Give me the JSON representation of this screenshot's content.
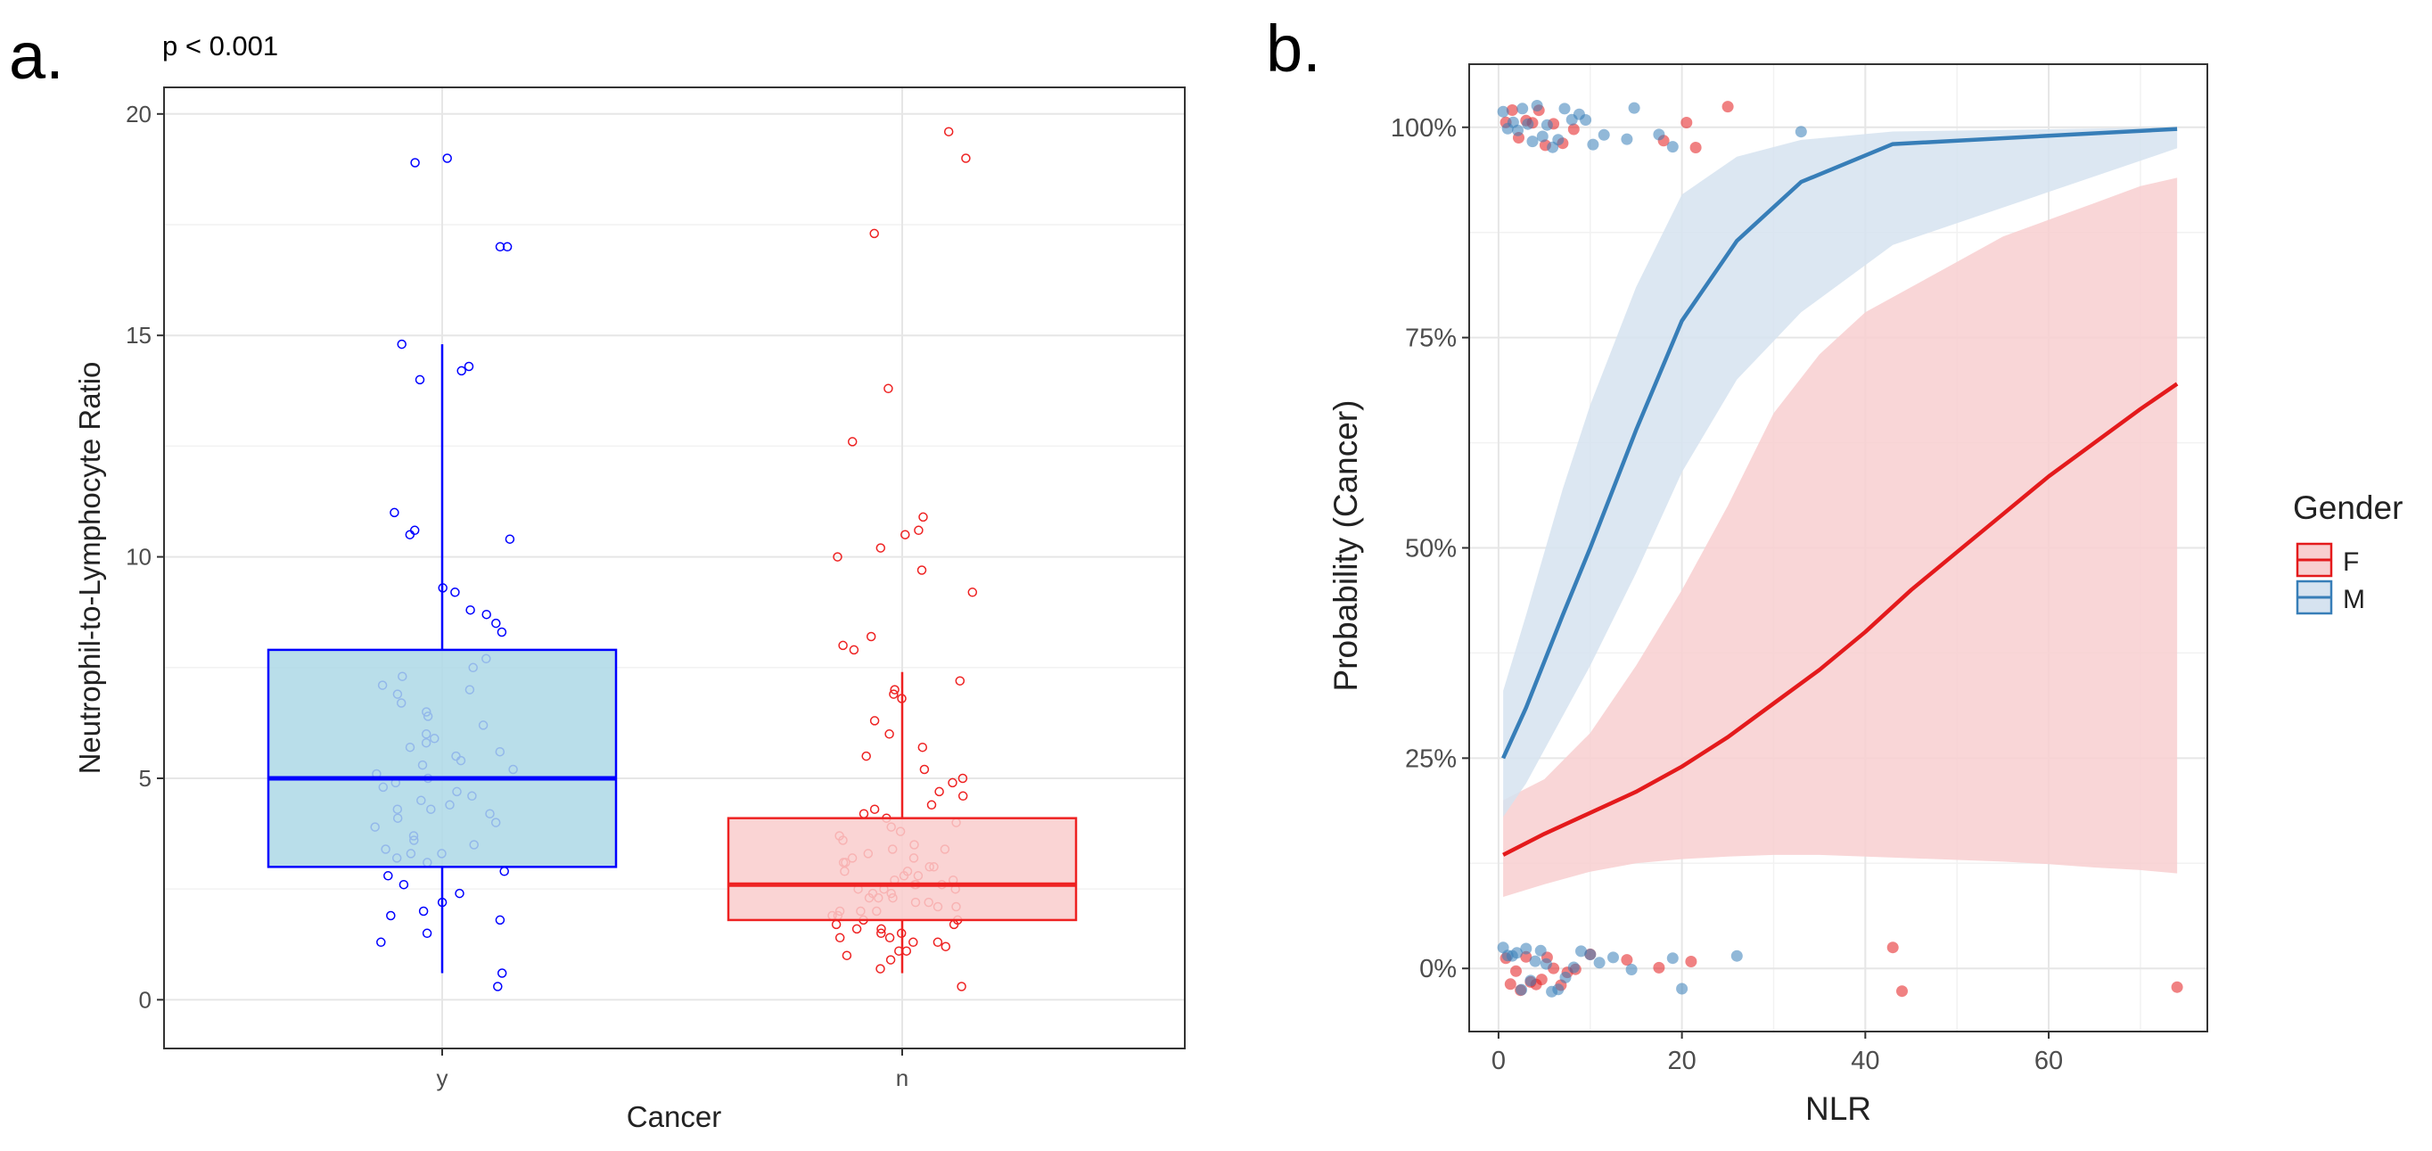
{
  "panel_a": {
    "panel_label": "a.",
    "annotation": "p < 0.001",
    "chart_data": {
      "type": "box",
      "title": "",
      "xlabel": "Cancer",
      "ylabel": "Neutrophil-to-Lymphocyte Ratio",
      "ylim": [
        -1.1,
        20.6
      ],
      "yticks": [
        0,
        5,
        10,
        15,
        20
      ],
      "categories": [
        "y",
        "n"
      ],
      "groups": [
        {
          "category": "y",
          "box_fill": "#add8e6",
          "line_color": "#0000ff",
          "whisker_low": 0.6,
          "q1": 3.0,
          "median": 5.0,
          "q3": 7.9,
          "whisker_high": 14.8,
          "points": [
            0.3,
            0.6,
            1.3,
            1.5,
            1.8,
            1.9,
            2.0,
            2.2,
            2.4,
            2.6,
            2.8,
            2.9,
            3.1,
            3.2,
            3.3,
            3.3,
            3.4,
            3.5,
            3.6,
            3.7,
            3.9,
            4.0,
            4.1,
            4.2,
            4.3,
            4.3,
            4.4,
            4.5,
            4.6,
            4.7,
            4.8,
            4.9,
            5.0,
            5.1,
            5.2,
            5.3,
            5.4,
            5.5,
            5.6,
            5.7,
            5.8,
            5.9,
            6.0,
            6.2,
            6.4,
            6.5,
            6.7,
            6.9,
            7.0,
            7.1,
            7.3,
            7.5,
            7.7,
            8.3,
            8.5,
            8.7,
            8.8,
            9.2,
            9.3,
            10.4,
            10.5,
            10.6,
            11.0,
            14.0,
            14.2,
            14.3,
            14.8,
            17.0,
            17.0,
            18.9,
            19.0
          ]
        },
        {
          "category": "n",
          "box_fill": "#f9cccc",
          "line_color": "#ee2222",
          "whisker_low": 0.6,
          "q1": 1.8,
          "median": 2.6,
          "q3": 4.1,
          "whisker_high": 7.4,
          "points": [
            0.3,
            0.7,
            0.9,
            1.0,
            1.1,
            1.1,
            1.2,
            1.3,
            1.3,
            1.4,
            1.4,
            1.5,
            1.5,
            1.6,
            1.6,
            1.7,
            1.7,
            1.8,
            1.8,
            1.9,
            1.9,
            2.0,
            2.0,
            2.0,
            2.1,
            2.1,
            2.2,
            2.2,
            2.3,
            2.3,
            2.3,
            2.4,
            2.4,
            2.5,
            2.5,
            2.5,
            2.6,
            2.6,
            2.6,
            2.7,
            2.7,
            2.8,
            2.8,
            2.9,
            2.9,
            3.0,
            3.0,
            3.1,
            3.1,
            3.2,
            3.2,
            3.3,
            3.4,
            3.4,
            3.5,
            3.6,
            3.7,
            3.8,
            3.9,
            4.0,
            4.1,
            4.2,
            4.3,
            4.4,
            4.6,
            4.7,
            4.9,
            5.0,
            5.2,
            5.5,
            5.7,
            6.0,
            6.3,
            6.8,
            6.9,
            7.0,
            7.2,
            7.9,
            8.0,
            8.2,
            9.2,
            9.7,
            10.0,
            10.2,
            10.5,
            10.6,
            10.9,
            12.6,
            13.8,
            17.3,
            19.0,
            19.6
          ]
        }
      ]
    }
  },
  "panel_b": {
    "panel_label": "b.",
    "chart_data": {
      "type": "line",
      "title": "",
      "xlabel": "NLR",
      "ylabel": "Probability (Cancer)",
      "xlim": [
        -3.2,
        77.3
      ],
      "ylim": [
        -0.075,
        1.075
      ],
      "xticks": [
        0,
        20,
        40,
        60
      ],
      "yticks": [
        0,
        0.25,
        0.5,
        0.75,
        1.0
      ],
      "ytick_labels": [
        "0%",
        "25%",
        "50%",
        "75%",
        "100%"
      ],
      "legend": {
        "title": "Gender",
        "position": "right",
        "entries": [
          {
            "label": "F",
            "color": "#e41a1c"
          },
          {
            "label": "M",
            "color": "#377eb8"
          }
        ]
      },
      "series": [
        {
          "name": "F",
          "color": "#e41a1c",
          "fill": "#f8cfd0",
          "x": [
            0.5,
            5,
            10,
            15,
            20,
            25,
            30,
            35,
            40,
            45,
            50,
            55,
            60,
            65,
            70,
            74
          ],
          "y": [
            0.135,
            0.16,
            0.185,
            0.21,
            0.24,
            0.275,
            0.315,
            0.355,
            0.4,
            0.45,
            0.495,
            0.54,
            0.585,
            0.625,
            0.665,
            0.695
          ],
          "lower": [
            0.085,
            0.1,
            0.115,
            0.125,
            0.13,
            0.133,
            0.135,
            0.135,
            0.133,
            0.131,
            0.129,
            0.127,
            0.124,
            0.12,
            0.117,
            0.113
          ],
          "upper": [
            0.2,
            0.225,
            0.28,
            0.36,
            0.45,
            0.55,
            0.66,
            0.73,
            0.78,
            0.81,
            0.84,
            0.87,
            0.89,
            0.91,
            0.93,
            0.94
          ]
        },
        {
          "name": "M",
          "color": "#377eb8",
          "fill": "#d6e3f0",
          "x": [
            0.5,
            3,
            7,
            10,
            15,
            20,
            26,
            33,
            43,
            74
          ],
          "y": [
            0.25,
            0.31,
            0.42,
            0.5,
            0.64,
            0.77,
            0.865,
            0.935,
            0.98,
            0.998
          ],
          "lower": [
            0.18,
            0.22,
            0.3,
            0.36,
            0.47,
            0.59,
            0.7,
            0.78,
            0.86,
            0.975
          ],
          "upper": [
            0.33,
            0.42,
            0.57,
            0.67,
            0.81,
            0.92,
            0.965,
            0.985,
            0.995,
            1.0
          ]
        }
      ],
      "points": {
        "F": {
          "top": [
            0.8,
            1.5,
            2.2,
            3.0,
            3.7,
            4.4,
            5.1,
            6.0,
            7.0,
            8.2,
            18.0,
            20.5,
            21.5,
            25.0
          ],
          "bottom": [
            0.8,
            1.3,
            1.9,
            2.4,
            3.0,
            3.5,
            4.1,
            4.7,
            5.3,
            6.0,
            6.8,
            7.5,
            8.4,
            10.0,
            14.0,
            17.5,
            21.0,
            43.0,
            44.0,
            74.0
          ]
        },
        "M": {
          "top": [
            0.5,
            1.0,
            1.6,
            2.1,
            2.6,
            3.2,
            3.7,
            4.2,
            4.8,
            5.3,
            5.9,
            6.5,
            7.2,
            8.0,
            8.8,
            9.5,
            10.3,
            11.5,
            14.0,
            14.8,
            17.5,
            19.0,
            33.0
          ],
          "bottom": [
            0.5,
            1.0,
            1.5,
            2.0,
            2.5,
            3.0,
            3.5,
            4.0,
            4.6,
            5.2,
            5.8,
            6.5,
            7.3,
            8.2,
            9.0,
            10.0,
            11.0,
            12.5,
            14.5,
            19.0,
            20.0,
            26.0
          ]
        }
      }
    }
  }
}
